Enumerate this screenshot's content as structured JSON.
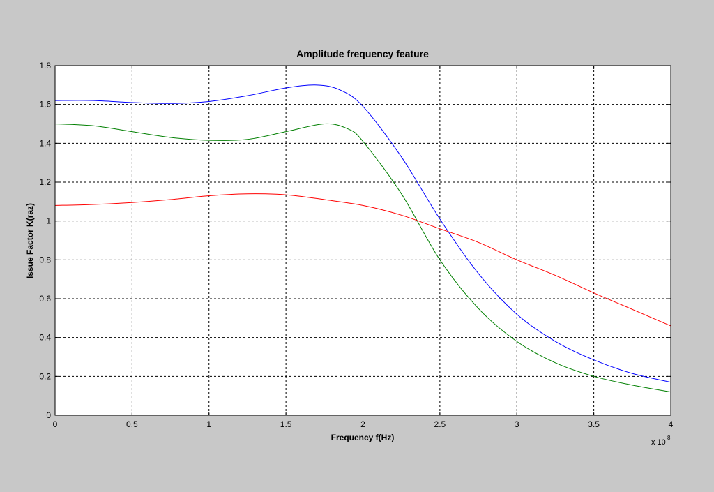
{
  "chart_data": {
    "type": "line",
    "title": "Amplitude frequency feature",
    "xlabel": "Frequency f(Hz)",
    "ylabel": "Issue Factor K(raz)",
    "x_multiplier_base": "x 10",
    "x_multiplier_exp": "8",
    "xlim": [
      0,
      4
    ],
    "ylim": [
      0,
      1.8
    ],
    "xticks": [
      0,
      0.5,
      1,
      1.5,
      2,
      2.5,
      3,
      3.5,
      4
    ],
    "xtick_labels": [
      "0",
      "0.5",
      "1",
      "1.5",
      "2",
      "2.5",
      "3",
      "3.5",
      "4"
    ],
    "yticks": [
      0,
      0.2,
      0.4,
      0.6,
      0.8,
      1,
      1.2,
      1.4,
      1.6,
      1.8
    ],
    "ytick_labels": [
      "0",
      "0.2",
      "0.4",
      "0.6",
      "0.8",
      "1",
      "1.2",
      "1.4",
      "1.6",
      "1.8"
    ],
    "grid": true,
    "legend": "none",
    "series": [
      {
        "color": "#0000ff",
        "x": [
          0,
          0.25,
          0.5,
          0.75,
          1,
          1.25,
          1.5,
          1.7,
          1.85,
          2,
          2.25,
          2.5,
          2.75,
          3,
          3.25,
          3.5,
          3.75,
          4
        ],
        "y": [
          1.62,
          1.62,
          1.61,
          1.605,
          1.615,
          1.645,
          1.685,
          1.7,
          1.675,
          1.59,
          1.33,
          1.01,
          0.73,
          0.52,
          0.38,
          0.285,
          0.215,
          0.17
        ]
      },
      {
        "color": "#007f00",
        "x": [
          0,
          0.25,
          0.5,
          0.75,
          1,
          1.25,
          1.5,
          1.75,
          1.9,
          2,
          2.25,
          2.5,
          2.75,
          3,
          3.25,
          3.5,
          3.75,
          4
        ],
        "y": [
          1.5,
          1.49,
          1.46,
          1.43,
          1.415,
          1.42,
          1.46,
          1.5,
          1.475,
          1.41,
          1.14,
          0.8,
          0.55,
          0.38,
          0.27,
          0.2,
          0.155,
          0.12
        ]
      },
      {
        "color": "#ff0000",
        "x": [
          0,
          0.25,
          0.5,
          0.75,
          1,
          1.25,
          1.5,
          1.75,
          2,
          2.25,
          2.5,
          2.75,
          3,
          3.25,
          3.5,
          3.75,
          4
        ],
        "y": [
          1.08,
          1.085,
          1.095,
          1.11,
          1.13,
          1.14,
          1.135,
          1.11,
          1.08,
          1.03,
          0.96,
          0.89,
          0.8,
          0.72,
          0.63,
          0.545,
          0.46
        ]
      }
    ]
  }
}
